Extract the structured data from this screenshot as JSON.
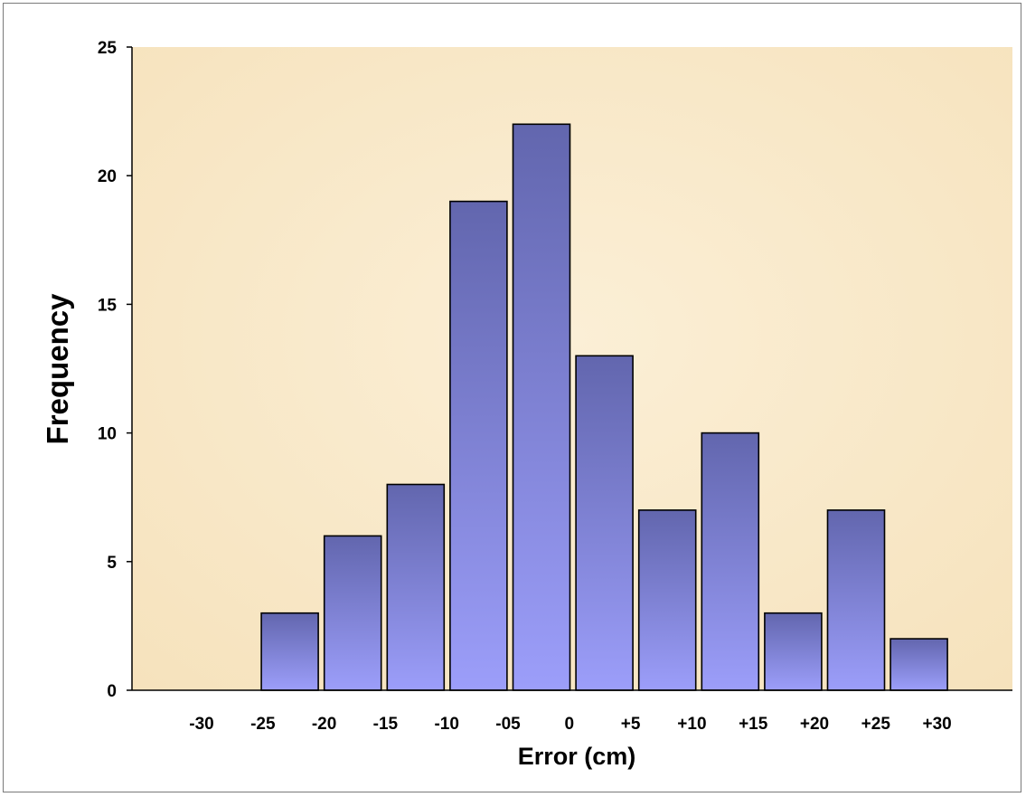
{
  "chart_data": {
    "type": "bar",
    "title": "",
    "xlabel": "Error (cm)",
    "ylabel": "Frequency",
    "ylim": [
      0,
      25
    ],
    "yticks": [
      0,
      5,
      10,
      15,
      20,
      25
    ],
    "bin_edges": [
      "-30",
      "-25",
      "-20",
      "-15",
      "-10",
      "-05",
      "0",
      "+5",
      "+10",
      "+15",
      "+20",
      "+25",
      "+30"
    ],
    "categories": [
      "-30 to -25",
      "-25 to -20",
      "-20 to -15",
      "-15 to -10",
      "-10 to -05",
      "-05 to 0",
      "0 to +5",
      "+5 to +10",
      "+10 to +15",
      "+15 to +20",
      "+20 to +25",
      "+25 to +30"
    ],
    "values": [
      0,
      3,
      6,
      8,
      19,
      22,
      13,
      7,
      10,
      3,
      7,
      2
    ],
    "grid": false,
    "legend": "none",
    "colors": {
      "plot_background": "#f9e8c8",
      "bar_top": "#6266ae",
      "bar_bottom": "#9c9efa",
      "bar_edge": "#000000"
    }
  }
}
